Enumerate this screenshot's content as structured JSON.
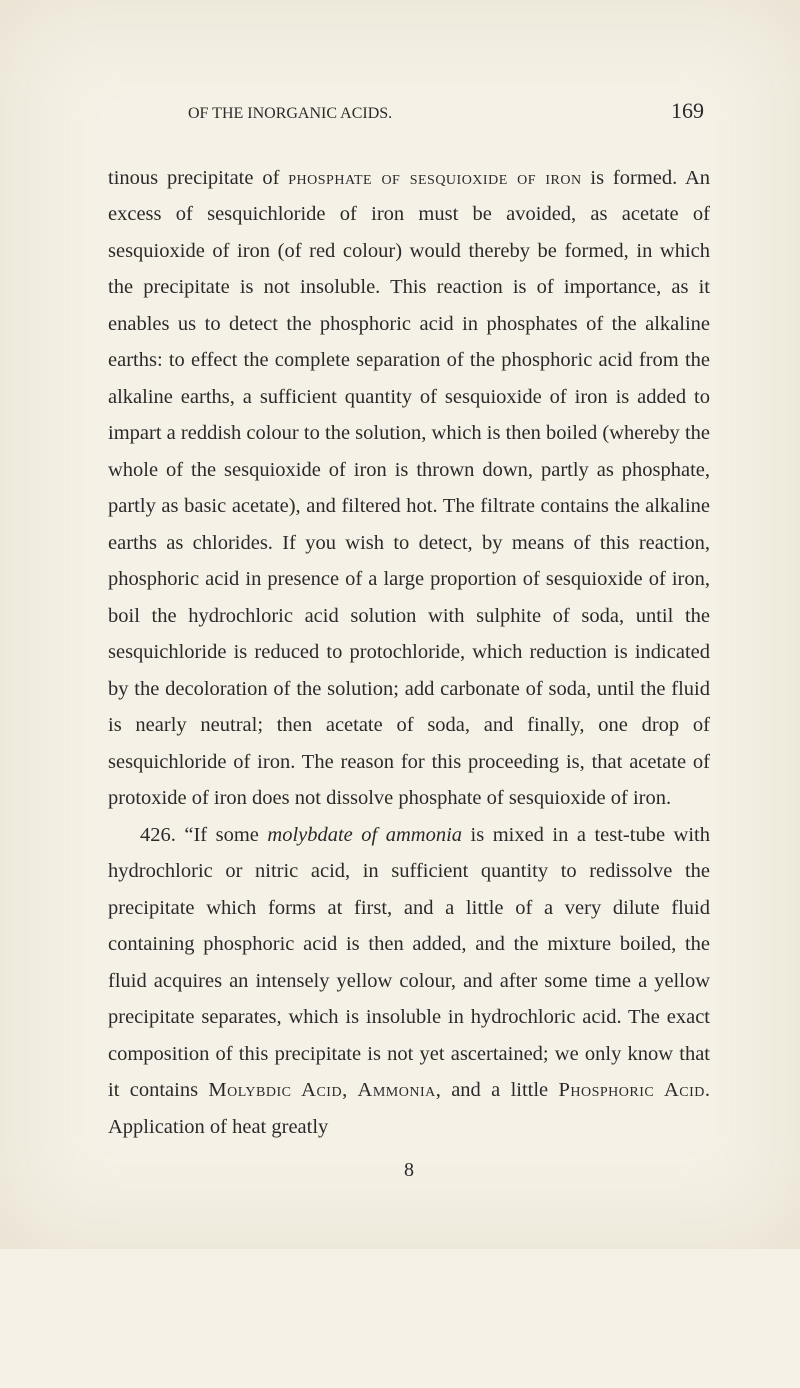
{
  "page": {
    "header_title": "OF THE INORGANIC ACIDS.",
    "page_number": "169",
    "footer_number": "8"
  },
  "text": {
    "p1_a": "tinous precipitate of ",
    "p1_sc1": "phosphate of sesquioxide of iron",
    "p1_b": " is formed. An excess of sesquichloride of iron must be avoided, as acetate of sesquioxide of iron (of red colour) would thereby be formed, in which the precipitate is not insoluble. This reaction is of importance, as it enables us to detect the phosphoric acid in phosphates of the alkaline earths: to effect the complete separation of the phosphoric acid from the alkaline earths, a sufficient quantity of ses­quioxide of iron is added to impart a reddish colour to the solution, which is then boiled (whereby the whole of the sesquioxide of iron is thrown down, partly as phosphate, partly as basic acetate), and filtered hot. The filtrate con­tains the alkaline earths as chlorides. If you wish to detect, by means of this reaction, phosphoric acid in pre­sence of a large proportion of sesquioxide of iron, boil the hydrochloric acid solution with sulphite of soda, until the sesquichloride is reduced to protochloride, which reduction is indicated by the decoloration of the solution; add car­bonate of soda, until the fluid is nearly neutral; then acetate of soda, and finally, one drop of sesquichloride of iron. The reason for this proceeding is, that acetate of protoxide of iron does not dissolve phosphate of ses­quioxide of iron.",
    "p2_a": "426. “If some ",
    "p2_it1": "molybdate of ammonia",
    "p2_b": " is mixed in a test-tube with hydrochloric or nitric acid, in sufficient quantity to redissolve the precipitate which forms at first, and a little of a very dilute fluid containing phosphoric acid is then added, and the mixture boiled, the fluid acquires an in­tensely yellow colour, and after some time a yellow preci­pitate separates, which is insoluble in hydrochloric acid. The exact composition of this precipitate is not yet ascertained; we only know that it contains ",
    "p2_sc1": "Molybdic Acid",
    "p2_c": ", ",
    "p2_sc2": "Ammonia",
    "p2_d": ", and a little ",
    "p2_sc3": "Phosphoric Acid",
    "p2_e": ". Application of heat greatly"
  },
  "style": {
    "background_color": "#f5f1e6",
    "text_color": "#2a2a2a",
    "body_fontsize": 20.5,
    "header_fontsize": 17,
    "pagenum_fontsize": 22,
    "line_height": 1.78
  }
}
